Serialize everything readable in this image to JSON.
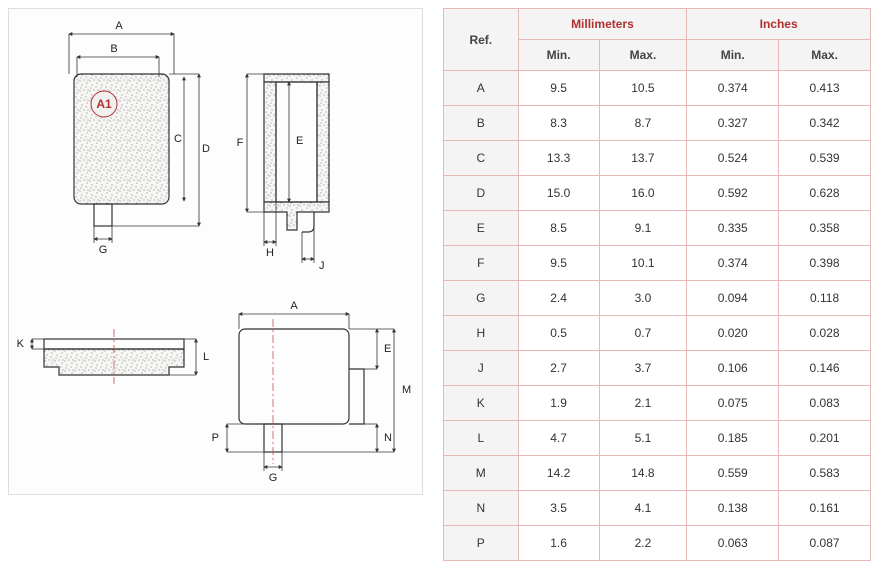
{
  "table": {
    "header_ref": "Ref.",
    "header_mm": "Millimeters",
    "header_in": "Inches",
    "header_min": "Min.",
    "header_max": "Max.",
    "rows": [
      {
        "ref": "A",
        "mm_min": "9.5",
        "mm_max": "10.5",
        "in_min": "0.374",
        "in_max": "0.413"
      },
      {
        "ref": "B",
        "mm_min": "8.3",
        "mm_max": "8.7",
        "in_min": "0.327",
        "in_max": "0.342"
      },
      {
        "ref": "C",
        "mm_min": "13.3",
        "mm_max": "13.7",
        "in_min": "0.524",
        "in_max": "0.539"
      },
      {
        "ref": "D",
        "mm_min": "15.0",
        "mm_max": "16.0",
        "in_min": "0.592",
        "in_max": "0.628"
      },
      {
        "ref": "E",
        "mm_min": "8.5",
        "mm_max": "9.1",
        "in_min": "0.335",
        "in_max": "0.358"
      },
      {
        "ref": "F",
        "mm_min": "9.5",
        "mm_max": "10.1",
        "in_min": "0.374",
        "in_max": "0.398"
      },
      {
        "ref": "G",
        "mm_min": "2.4",
        "mm_max": "3.0",
        "in_min": "0.094",
        "in_max": "0.118"
      },
      {
        "ref": "H",
        "mm_min": "0.5",
        "mm_max": "0.7",
        "in_min": "0.020",
        "in_max": "0.028"
      },
      {
        "ref": "J",
        "mm_min": "2.7",
        "mm_max": "3.7",
        "in_min": "0.106",
        "in_max": "0.146"
      },
      {
        "ref": "K",
        "mm_min": "1.9",
        "mm_max": "2.1",
        "in_min": "0.075",
        "in_max": "0.083"
      },
      {
        "ref": "L",
        "mm_min": "4.7",
        "mm_max": "5.1",
        "in_min": "0.185",
        "in_max": "0.201"
      },
      {
        "ref": "M",
        "mm_min": "14.2",
        "mm_max": "14.8",
        "in_min": "0.559",
        "in_max": "0.583"
      },
      {
        "ref": "N",
        "mm_min": "3.5",
        "mm_max": "4.1",
        "in_min": "0.138",
        "in_max": "0.161"
      },
      {
        "ref": "P",
        "mm_min": "1.6",
        "mm_max": "2.2",
        "in_min": "0.063",
        "in_max": "0.087"
      }
    ]
  },
  "drawing": {
    "badge_label": "A1",
    "dims": {
      "A": "A",
      "B": "B",
      "C": "C",
      "D": "D",
      "E": "E",
      "F": "F",
      "G": "G",
      "H": "H",
      "J": "J",
      "K": "K",
      "L": "L",
      "M": "M",
      "N": "N",
      "P": "P"
    },
    "colors": {
      "outline": "#333333",
      "accent": "#b03030",
      "panel_border": "#dddddd",
      "table_border": "#e8b8b8",
      "header_bg": "#f4f4f4"
    }
  }
}
